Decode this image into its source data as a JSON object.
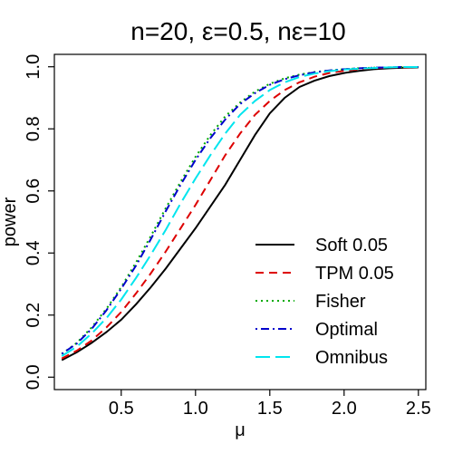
{
  "chart_data": {
    "type": "line",
    "title": "n=20, ε=0.5, nε=10",
    "xlabel": "μ",
    "ylabel": "power",
    "xlim": [
      0.05,
      2.55
    ],
    "ylim": [
      -0.04,
      1.04
    ],
    "x_ticks": [
      0.5,
      1.0,
      1.5,
      2.0,
      2.5
    ],
    "x_tick_labels": [
      "0.5",
      "1.0",
      "1.5",
      "2.0",
      "2.5"
    ],
    "y_ticks": [
      0.0,
      0.2,
      0.4,
      0.6,
      0.8,
      1.0
    ],
    "y_tick_labels": [
      "0.0",
      "0.2",
      "0.4",
      "0.6",
      "0.8",
      "1.0"
    ],
    "grid": false,
    "legend_position": "bottom-right",
    "x": [
      0.1,
      0.2,
      0.3,
      0.4,
      0.5,
      0.6,
      0.7,
      0.8,
      0.9,
      1.0,
      1.1,
      1.2,
      1.3,
      1.4,
      1.5,
      1.6,
      1.7,
      1.8,
      1.9,
      2.0,
      2.1,
      2.2,
      2.3,
      2.4,
      2.5
    ],
    "series": [
      {
        "name": "Soft 0.05",
        "color": "#000000",
        "dash": "solid",
        "values": [
          0.055,
          0.08,
          0.11,
          0.145,
          0.185,
          0.235,
          0.29,
          0.35,
          0.415,
          0.48,
          0.55,
          0.62,
          0.7,
          0.78,
          0.85,
          0.9,
          0.935,
          0.955,
          0.97,
          0.98,
          0.987,
          0.992,
          0.995,
          0.997,
          0.998
        ]
      },
      {
        "name": "TPM 0.05",
        "color": "#dd0000",
        "dash": "dashed",
        "values": [
          0.06,
          0.085,
          0.118,
          0.16,
          0.21,
          0.27,
          0.335,
          0.405,
          0.48,
          0.555,
          0.635,
          0.715,
          0.785,
          0.845,
          0.89,
          0.925,
          0.95,
          0.968,
          0.98,
          0.987,
          0.992,
          0.995,
          0.997,
          0.998,
          0.999
        ]
      },
      {
        "name": "Fisher",
        "color": "#00aa00",
        "dash": "dotted",
        "values": [
          0.075,
          0.11,
          0.16,
          0.22,
          0.29,
          0.37,
          0.455,
          0.545,
          0.63,
          0.71,
          0.78,
          0.84,
          0.885,
          0.92,
          0.945,
          0.963,
          0.975,
          0.983,
          0.988,
          0.992,
          0.995,
          0.997,
          0.998,
          0.999,
          0.999
        ]
      },
      {
        "name": "Optimal",
        "color": "#0000cc",
        "dash": "dotdash",
        "values": [
          0.075,
          0.108,
          0.155,
          0.215,
          0.285,
          0.36,
          0.445,
          0.535,
          0.62,
          0.7,
          0.77,
          0.83,
          0.88,
          0.915,
          0.942,
          0.96,
          0.973,
          0.982,
          0.988,
          0.992,
          0.995,
          0.997,
          0.998,
          0.999,
          0.999
        ]
      },
      {
        "name": "Omnibus",
        "color": "#00e5ee",
        "dash": "longdash",
        "values": [
          0.068,
          0.098,
          0.14,
          0.19,
          0.25,
          0.32,
          0.395,
          0.475,
          0.56,
          0.64,
          0.715,
          0.785,
          0.845,
          0.89,
          0.925,
          0.95,
          0.967,
          0.978,
          0.986,
          0.991,
          0.994,
          0.996,
          0.998,
          0.999,
          0.999
        ]
      }
    ]
  }
}
